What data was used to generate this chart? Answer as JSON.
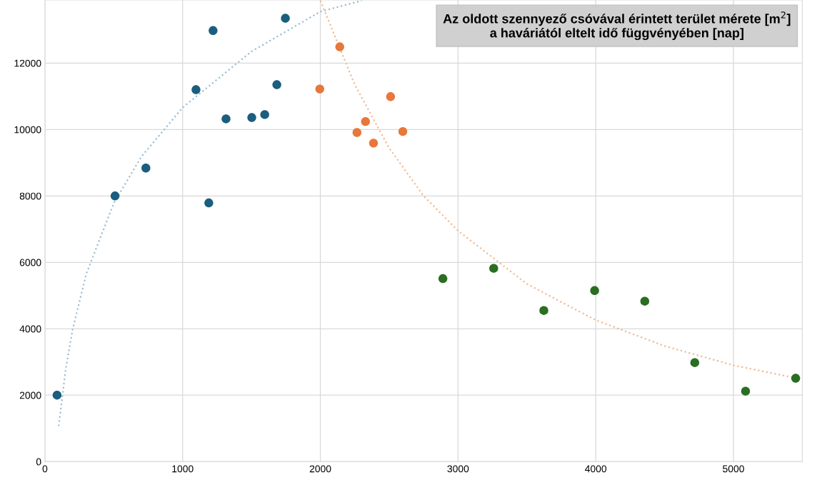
{
  "chart_data": {
    "type": "scatter",
    "title": "Az oldott szennyező csóvával érintett terület mérete [m$^{2}$]\na haváriától eltelt idő függvényében [nap]",
    "xlim": [
      0,
      5500
    ],
    "ylim": [
      0,
      13900
    ],
    "xticks": [
      0,
      1000,
      2000,
      3000,
      4000,
      5000
    ],
    "yticks": [
      0,
      2000,
      4000,
      6000,
      8000,
      10000,
      12000
    ],
    "grid": true,
    "marker": "circle",
    "series": [
      {
        "type": "line",
        "marker": "none",
        "line_style": "dotted",
        "color": "#9bbfd6",
        "x": [
          100,
          150,
          200,
          300,
          500,
          700,
          1000,
          1500,
          2000,
          2300
        ],
        "values": [
          1070,
          2760,
          3960,
          5650,
          7780,
          9180,
          10660,
          12350,
          13550,
          13880
        ]
      },
      {
        "type": "line",
        "marker": "none",
        "line_style": "dotted",
        "color": "#f2b98f",
        "x": [
          2000,
          2250,
          2500,
          2750,
          3000,
          3500,
          4000,
          4500,
          5000,
          5450
        ],
        "values": [
          13880,
          11350,
          9440,
          8000,
          6950,
          5350,
          4260,
          3480,
          2900,
          2520
        ]
      },
      {
        "color": "#1b5e7e",
        "x": [
          88,
          509,
          733,
          1097,
          1221,
          1190,
          1315,
          1502,
          1596,
          1684,
          1746
        ],
        "values": [
          2000,
          8000,
          8840,
          11200,
          12980,
          7790,
          10320,
          10360,
          10450,
          11350,
          13350
        ]
      },
      {
        "color": "#e8773a",
        "x": [
          1996,
          2141,
          2266,
          2328,
          2386,
          2510,
          2599
        ],
        "values": [
          11220,
          12490,
          9910,
          10240,
          9590,
          10990,
          9940
        ]
      },
      {
        "color": "#2a6e22",
        "x": [
          2890,
          3259,
          3623,
          3992,
          4356,
          4719,
          5088,
          5452
        ],
        "values": [
          5510,
          5820,
          4550,
          5150,
          4830,
          2980,
          2120,
          2510
        ]
      }
    ]
  }
}
